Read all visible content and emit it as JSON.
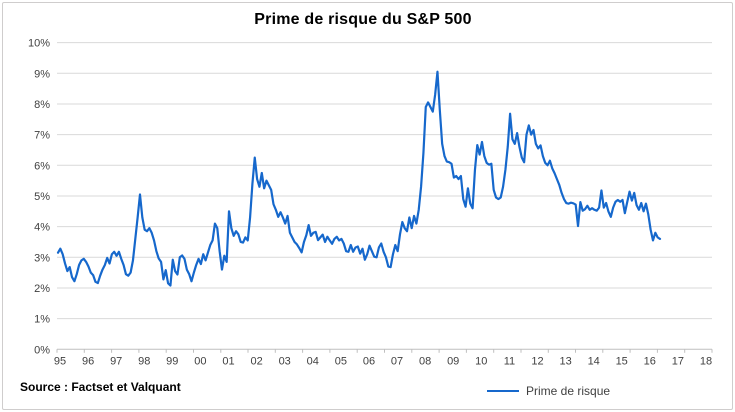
{
  "chart_data": {
    "type": "line",
    "title": "Prime de risque du S&P 500",
    "legend": "Prime de risque",
    "source": "Source : Factset et Valquant",
    "unit": "%",
    "ylim": [
      0,
      10
    ],
    "grid": "horizontal",
    "legend_position": "bottom-center",
    "y_ticks": [
      "0%",
      "1%",
      "2%",
      "3%",
      "4%",
      "5%",
      "6%",
      "7%",
      "8%",
      "9%",
      "10%"
    ],
    "x_labels": [
      "95",
      "96",
      "97",
      "98",
      "99",
      "00",
      "01",
      "02",
      "03",
      "04",
      "05",
      "06",
      "07",
      "08",
      "09",
      "10",
      "11",
      "12",
      "13",
      "14",
      "15",
      "16",
      "17",
      "18"
    ],
    "x_note": "monthly values, Jan 1995 to mid-2016; x axis extends to 18",
    "series": [
      {
        "name": "Prime de risque",
        "start": "1995-01",
        "frequency": "monthly",
        "values": [
          3.15,
          3.28,
          3.1,
          2.8,
          2.55,
          2.68,
          2.35,
          2.22,
          2.45,
          2.75,
          2.9,
          2.95,
          2.85,
          2.7,
          2.5,
          2.42,
          2.2,
          2.16,
          2.4,
          2.6,
          2.75,
          2.98,
          2.8,
          3.1,
          3.18,
          3.05,
          3.18,
          2.95,
          2.75,
          2.45,
          2.4,
          2.5,
          2.9,
          3.6,
          4.3,
          5.05,
          4.3,
          3.9,
          3.85,
          3.95,
          3.8,
          3.55,
          3.2,
          2.96,
          2.85,
          2.28,
          2.58,
          2.15,
          2.08,
          2.92,
          2.55,
          2.44,
          3.0,
          3.06,
          2.95,
          2.6,
          2.45,
          2.22,
          2.5,
          2.75,
          2.95,
          2.78,
          3.1,
          2.9,
          3.15,
          3.4,
          3.55,
          4.1,
          3.95,
          3.2,
          2.6,
          3.05,
          2.85,
          4.5,
          3.95,
          3.7,
          3.85,
          3.75,
          3.5,
          3.48,
          3.65,
          3.55,
          4.3,
          5.4,
          6.25,
          5.55,
          5.3,
          5.75,
          5.25,
          5.5,
          5.35,
          5.2,
          4.73,
          4.55,
          4.32,
          4.47,
          4.3,
          4.1,
          4.35,
          3.8,
          3.65,
          3.5,
          3.42,
          3.3,
          3.16,
          3.5,
          3.72,
          4.05,
          3.7,
          3.8,
          3.83,
          3.56,
          3.65,
          3.74,
          3.5,
          3.67,
          3.55,
          3.44,
          3.6,
          3.67,
          3.55,
          3.6,
          3.45,
          3.2,
          3.18,
          3.4,
          3.18,
          3.32,
          3.35,
          3.12,
          3.28,
          2.92,
          3.1,
          3.38,
          3.2,
          3.02,
          3.0,
          3.32,
          3.45,
          3.18,
          3.0,
          2.7,
          2.68,
          3.1,
          3.4,
          3.2,
          3.75,
          4.15,
          3.95,
          3.85,
          4.3,
          3.95,
          4.35,
          4.1,
          4.55,
          5.3,
          6.4,
          7.9,
          8.05,
          7.9,
          7.75,
          8.3,
          9.05,
          7.8,
          6.7,
          6.3,
          6.12,
          6.1,
          6.05,
          5.6,
          5.65,
          5.55,
          5.65,
          4.9,
          4.65,
          5.25,
          4.75,
          4.6,
          5.85,
          6.66,
          6.35,
          6.76,
          6.3,
          6.08,
          6.02,
          6.05,
          5.2,
          4.95,
          4.9,
          4.95,
          5.3,
          5.85,
          6.6,
          7.68,
          6.85,
          6.7,
          7.05,
          6.6,
          6.25,
          6.1,
          7.0,
          7.3,
          7.0,
          7.15,
          6.7,
          6.55,
          6.65,
          6.3,
          6.08,
          6.0,
          6.15,
          5.9,
          5.74,
          5.55,
          5.36,
          5.1,
          4.9,
          4.77,
          4.75,
          4.78,
          4.76,
          4.72,
          4.02,
          4.8,
          4.52,
          4.57,
          4.68,
          4.55,
          4.6,
          4.55,
          4.52,
          4.62,
          5.18,
          4.62,
          4.77,
          4.49,
          4.32,
          4.62,
          4.81,
          4.87,
          4.81,
          4.87,
          4.44,
          4.8,
          5.14,
          4.85,
          5.1,
          4.7,
          4.55,
          4.77,
          4.5,
          4.75,
          4.4,
          3.9,
          3.55,
          3.8,
          3.65,
          3.6
        ]
      }
    ],
    "colors": {
      "line": "#1668CC",
      "gridline": "#D9D9D9",
      "axis": "#BFBFBF",
      "tick_text": "#404040",
      "title_text": "#000000"
    }
  }
}
